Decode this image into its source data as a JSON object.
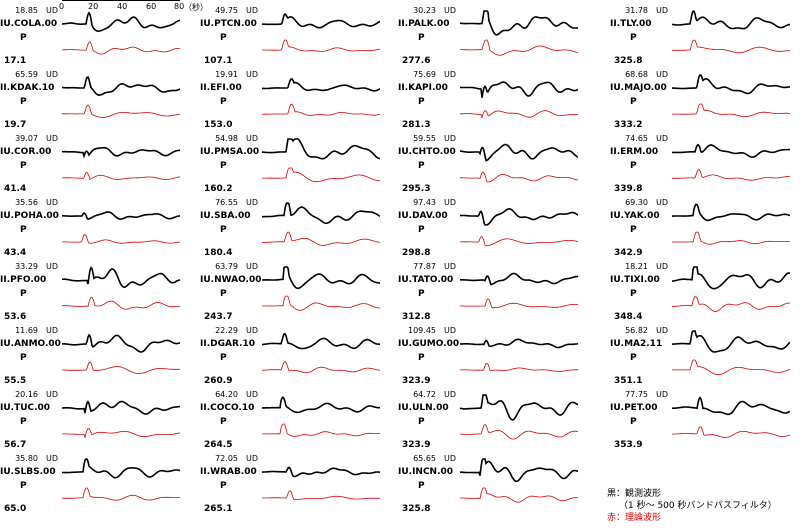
{
  "scale_bar": {
    "ticks": [
      "0",
      "20",
      "40",
      "60",
      "80"
    ],
    "unit": "（秒）"
  },
  "columns": [
    [
      {
        "amp": "18.85",
        "comp": "UD",
        "code": "IU.COLA.00",
        "phase": "P",
        "dist": "17.1",
        "seed": 1
      },
      {
        "amp": "65.59",
        "comp": "UD",
        "code": "II.KDAK.10",
        "phase": "P",
        "dist": "19.7",
        "seed": 2
      },
      {
        "amp": "39.07",
        "comp": "UD",
        "code": "IU.COR.00",
        "phase": "P",
        "dist": "41.4",
        "seed": 3
      },
      {
        "amp": "35.56",
        "comp": "UD",
        "code": "IU.POHA.00",
        "phase": "P",
        "dist": "43.4",
        "seed": 4
      },
      {
        "amp": "33.29",
        "comp": "UD",
        "code": "II.PFO.00",
        "phase": "P",
        "dist": "53.6",
        "seed": 5
      },
      {
        "amp": "11.69",
        "comp": "UD",
        "code": "IU.ANMO.00",
        "phase": "P",
        "dist": "55.5",
        "seed": 6
      },
      {
        "amp": "20.16",
        "comp": "UD",
        "code": "IU.TUC.00",
        "phase": "P",
        "dist": "56.7",
        "seed": 7
      },
      {
        "amp": "35.80",
        "comp": "UD",
        "code": "IU.SLBS.00",
        "phase": "P",
        "dist": "65.0",
        "seed": 8
      }
    ],
    [
      {
        "amp": "49.75",
        "comp": "UD",
        "code": "IU.PTCN.00",
        "phase": "P",
        "dist": "107.1",
        "seed": 9
      },
      {
        "amp": "19.91",
        "comp": "UD",
        "code": "II.EFI.00",
        "phase": "P",
        "dist": "153.0",
        "seed": 10
      },
      {
        "amp": "54.98",
        "comp": "UD",
        "code": "IU.PMSA.00",
        "phase": "P",
        "dist": "160.2",
        "seed": 11
      },
      {
        "amp": "76.55",
        "comp": "UD",
        "code": "IU.SBA.00",
        "phase": "P",
        "dist": "180.4",
        "seed": 12
      },
      {
        "amp": "63.79",
        "comp": "UD",
        "code": "IU.NWAO.00",
        "phase": "P",
        "dist": "243.7",
        "seed": 13
      },
      {
        "amp": "22.29",
        "comp": "UD",
        "code": "II.DGAR.10",
        "phase": "P",
        "dist": "260.9",
        "seed": 14
      },
      {
        "amp": "64.20",
        "comp": "UD",
        "code": "II.COCO.10",
        "phase": "P",
        "dist": "264.5",
        "seed": 15
      },
      {
        "amp": "72.05",
        "comp": "UD",
        "code": "II.WRAB.00",
        "phase": "P",
        "dist": "265.1",
        "seed": 16
      }
    ],
    [
      {
        "amp": "30.23",
        "comp": "UD",
        "code": "II.PALK.00",
        "phase": "P",
        "dist": "277.6",
        "seed": 17
      },
      {
        "amp": "75.69",
        "comp": "UD",
        "code": "II.KAPI.00",
        "phase": "P",
        "dist": "281.3",
        "seed": 18
      },
      {
        "amp": "59.55",
        "comp": "UD",
        "code": "IU.CHTO.00",
        "phase": "P",
        "dist": "295.3",
        "seed": 19
      },
      {
        "amp": "97.43",
        "comp": "UD",
        "code": "IU.DAV.00",
        "phase": "P",
        "dist": "298.8",
        "seed": 20
      },
      {
        "amp": "77.87",
        "comp": "UD",
        "code": "IU.TATO.00",
        "phase": "P",
        "dist": "312.8",
        "seed": 21
      },
      {
        "amp": "109.45",
        "comp": "UD",
        "code": "IU.GUMO.00",
        "phase": "P",
        "dist": "323.9",
        "seed": 22
      },
      {
        "amp": "64.72",
        "comp": "UD",
        "code": "IU.ULN.00",
        "phase": "P",
        "dist": "323.9",
        "seed": 23
      },
      {
        "amp": "65.65",
        "comp": "UD",
        "code": "IU.INCN.00",
        "phase": "P",
        "dist": "325.8",
        "seed": 24
      }
    ],
    [
      {
        "amp": "31.78",
        "comp": "UD",
        "code": "II.TLY.00",
        "phase": "P",
        "dist": "325.8",
        "seed": 25
      },
      {
        "amp": "68.68",
        "comp": "UD",
        "code": "IU.MAJO.00",
        "phase": "P",
        "dist": "333.2",
        "seed": 26
      },
      {
        "amp": "74.65",
        "comp": "UD",
        "code": "II.ERM.00",
        "phase": "P",
        "dist": "339.8",
        "seed": 27
      },
      {
        "amp": "69.30",
        "comp": "UD",
        "code": "IU.YAK.00",
        "phase": "P",
        "dist": "342.9",
        "seed": 28
      },
      {
        "amp": "18.21",
        "comp": "UD",
        "code": "IU.TIXI.00",
        "phase": "P",
        "dist": "348.4",
        "seed": 29
      },
      {
        "amp": "56.82",
        "comp": "UD",
        "code": "IU.MA2.11",
        "phase": "P",
        "dist": "351.1",
        "seed": 30
      },
      {
        "amp": "77.75",
        "comp": "UD",
        "code": "IU.PET.00",
        "phase": "P",
        "dist": "353.9",
        "seed": 31
      },
      {
        "amp": "",
        "comp": "",
        "code": "",
        "phase": "",
        "dist": "",
        "seed": 0
      }
    ]
  ],
  "legend": {
    "black": "黒：観測波形",
    "black_sub": "（1 秒～ 500 秒バンドパスフィルタ）",
    "red": "赤：理論波形"
  },
  "colors": {
    "observed": "#000000",
    "synthetic": "#d40000"
  }
}
